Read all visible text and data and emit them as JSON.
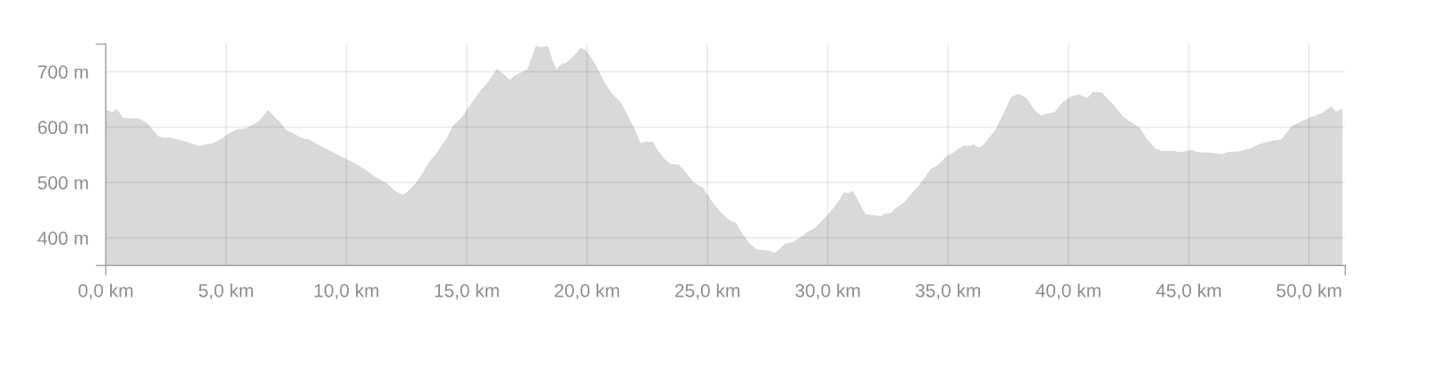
{
  "chart_data": {
    "type": "area",
    "color": "#d9d9d9",
    "x": [
      0.0,
      0.25,
      0.46,
      0.71,
      1.05,
      1.36,
      1.73,
      1.92,
      2.17,
      2.35,
      2.66,
      3.03,
      3.4,
      3.87,
      4.15,
      4.46,
      4.77,
      5.14,
      5.45,
      5.76,
      6.07,
      6.37,
      6.75,
      7.02,
      7.18,
      7.49,
      7.8,
      8.17,
      8.42,
      8.97,
      9.47,
      9.96,
      10.34,
      10.83,
      11.2,
      11.7,
      12.01,
      12.32,
      12.5,
      12.87,
      13.12,
      13.43,
      13.7,
      13.92,
      14.17,
      14.42,
      14.79,
      15.17,
      15.54,
      15.91,
      16.25,
      16.52,
      16.8,
      17.02,
      17.33,
      17.52,
      17.7,
      17.86,
      18.07,
      18.38,
      18.57,
      18.73,
      18.94,
      19.12,
      19.43,
      19.72,
      19.93,
      20.24,
      20.48,
      20.73,
      21.04,
      21.41,
      21.72,
      21.97,
      22.22,
      22.41,
      22.59,
      22.74,
      22.9,
      23.21,
      23.43,
      23.83,
      24.08,
      24.42,
      24.82,
      25.19,
      25.56,
      25.93,
      26.18,
      26.43,
      26.74,
      27.05,
      27.54,
      27.79,
      27.98,
      28.22,
      28.56,
      28.9,
      29.21,
      29.46,
      29.77,
      30.08,
      30.4,
      30.67,
      30.87,
      31.03,
      31.16,
      31.36,
      31.57,
      31.88,
      32.2,
      32.37,
      32.62,
      32.86,
      33.17,
      33.48,
      33.85,
      34.29,
      34.54,
      34.97,
      35.21,
      35.65,
      35.9,
      36.06,
      36.27,
      36.45,
      36.95,
      37.26,
      37.63,
      37.94,
      38.25,
      38.62,
      38.87,
      39.05,
      39.43,
      39.74,
      40.05,
      40.41,
      40.79,
      41.03,
      41.4,
      41.59,
      41.9,
      42.25,
      42.65,
      42.96,
      43.27,
      43.64,
      43.89,
      44.38,
      44.69,
      45.12,
      45.37,
      45.74,
      46.11,
      46.36,
      46.6,
      47.1,
      47.59,
      47.96,
      48.33,
      48.58,
      48.85,
      49.26,
      49.7,
      50.07,
      50.56,
      50.91,
      51.12,
      51.38
    ],
    "values": [
      632,
      627,
      633,
      617,
      616,
      616,
      607,
      597,
      584,
      581,
      581,
      577,
      573,
      566,
      569,
      571,
      578,
      589,
      596,
      597,
      603,
      611,
      631,
      618,
      612,
      595,
      588,
      580,
      578,
      565,
      554,
      543,
      535,
      522,
      510,
      498,
      485,
      478,
      482,
      498,
      514,
      537,
      550,
      565,
      580,
      602,
      618,
      642,
      664,
      683,
      705,
      696,
      685,
      694,
      700,
      704,
      726,
      746,
      745,
      746,
      720,
      704,
      714,
      716,
      728,
      743,
      740,
      721,
      702,
      680,
      660,
      644,
      618,
      597,
      571,
      574,
      573,
      574,
      560,
      543,
      534,
      532,
      519,
      500,
      490,
      466,
      446,
      431,
      427,
      409,
      390,
      379,
      377,
      373,
      379,
      389,
      393,
      402,
      412,
      418,
      431,
      446,
      463,
      482,
      481,
      485,
      476,
      458,
      443,
      441,
      439,
      444,
      445,
      455,
      464,
      480,
      498,
      525,
      530,
      549,
      554,
      567,
      566,
      569,
      563,
      567,
      594,
      621,
      655,
      660,
      653,
      629,
      621,
      624,
      627,
      644,
      654,
      659,
      653,
      664,
      662,
      653,
      639,
      620,
      607,
      599,
      578,
      561,
      557,
      557,
      555,
      559,
      555,
      554,
      553,
      551,
      555,
      556,
      562,
      570,
      574,
      576,
      578,
      601,
      611,
      618,
      626,
      637,
      628,
      633
    ],
    "xlim": [
      0,
      51.5
    ],
    "ylim": [
      350,
      750
    ],
    "xticks": [
      {
        "value": 0,
        "label": "0,0 km"
      },
      {
        "value": 5,
        "label": "5,0 km"
      },
      {
        "value": 10,
        "label": "10,0 km"
      },
      {
        "value": 15,
        "label": "15,0 km"
      },
      {
        "value": 20,
        "label": "20,0 km"
      },
      {
        "value": 25,
        "label": "25,0 km"
      },
      {
        "value": 30,
        "label": "30,0 km"
      },
      {
        "value": 35,
        "label": "35,0 km"
      },
      {
        "value": 40,
        "label": "40,0 km"
      },
      {
        "value": 45,
        "label": "45,0 km"
      },
      {
        "value": 50,
        "label": "50,0 km"
      },
      {
        "value": 51.5,
        "label": null
      }
    ],
    "yticks": [
      {
        "value": 350,
        "label": null
      },
      {
        "value": 400,
        "label": "400 m"
      },
      {
        "value": 500,
        "label": "500 m"
      },
      {
        "value": 600,
        "label": "600 m"
      },
      {
        "value": 700,
        "label": "700 m"
      },
      {
        "value": 750,
        "label": null
      }
    ],
    "grid": true
  }
}
